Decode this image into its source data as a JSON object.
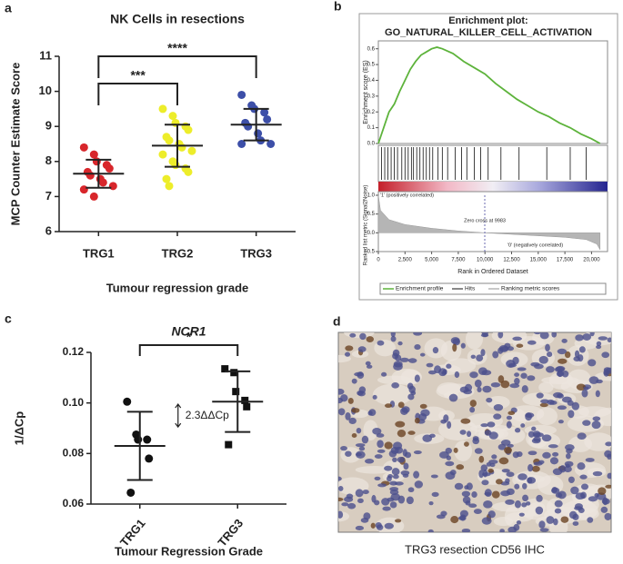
{
  "chart_data": [
    {
      "type": "scatter",
      "panel": "a",
      "title": "NK Cells in resections",
      "ylabel": "MCP Counter Estimate Score",
      "xlabel": "Tumour regression grade",
      "categories": [
        "TRG1",
        "TRG2",
        "TRG3"
      ],
      "groups": [
        {
          "color": "#d8262b",
          "marker": "circle",
          "values": [
            8.4,
            8.2,
            8.0,
            7.9,
            7.8,
            7.7,
            7.6,
            7.5,
            7.4,
            7.3,
            7.2,
            7.0
          ],
          "mean": 7.65,
          "sd": 0.4
        },
        {
          "color": "#eded2a",
          "marker": "circle",
          "values": [
            9.5,
            9.3,
            9.1,
            9.0,
            8.9,
            8.7,
            8.6,
            8.5,
            8.4,
            8.3,
            8.2,
            8.0,
            7.9,
            7.8,
            7.7,
            7.5,
            7.3
          ],
          "mean": 8.45,
          "sd": 0.6
        },
        {
          "color": "#3d4fa8",
          "marker": "circle",
          "values": [
            9.9,
            9.6,
            9.5,
            9.4,
            9.2,
            9.1,
            9.0,
            8.8,
            8.6,
            8.5,
            8.5
          ],
          "mean": 9.05,
          "sd": 0.45
        }
      ],
      "ylim": [
        6,
        11
      ],
      "yticks": [
        6,
        7,
        8,
        9,
        10,
        11
      ],
      "comparisons": [
        {
          "label": "***",
          "groups": [
            0,
            1
          ]
        },
        {
          "label": "****",
          "groups": [
            0,
            2
          ]
        }
      ]
    },
    {
      "type": "line",
      "panel": "b",
      "title": "Enrichment plot:",
      "subtitle": "GO_NATURAL_KILLER_CELL_ACTIVATION",
      "ylabel": "Enrichment score (ES)",
      "x": [
        0,
        500,
        1000,
        1500,
        2000,
        2500,
        3000,
        3500,
        4000,
        4500,
        5000,
        5500,
        6000,
        7000,
        8000,
        9000,
        10000,
        11000,
        12000,
        13000,
        14000,
        15000,
        16000,
        17000,
        18000,
        19000,
        20000,
        20800
      ],
      "series": [
        {
          "name": "Enrichment profile",
          "color": "#5db33b",
          "values": [
            0,
            0.1,
            0.2,
            0.25,
            0.33,
            0.4,
            0.47,
            0.52,
            0.56,
            0.58,
            0.6,
            0.61,
            0.6,
            0.57,
            0.52,
            0.48,
            0.44,
            0.38,
            0.33,
            0.28,
            0.24,
            0.2,
            0.17,
            0.13,
            0.1,
            0.06,
            0.03,
            0
          ]
        }
      ],
      "ylim": [
        0,
        0.65
      ],
      "yticks": [
        {
          "value": 0,
          "label": "0.0"
        },
        0.1,
        0.2,
        0.3,
        0.4,
        0.5,
        0.6
      ],
      "hits": {
        "name": "Hits",
        "x": [
          300,
          600,
          900,
          1200,
          1500,
          1800,
          2200,
          2500,
          2800,
          3100,
          3300,
          3600,
          3900,
          4200,
          4500,
          4800,
          5100,
          5600,
          6000,
          6500,
          7200,
          7800,
          8300,
          9000,
          9600,
          10300,
          11500,
          13200,
          15800,
          18000,
          19500
        ]
      },
      "ranking": {
        "name": "Ranking metric scores",
        "ylabel": "Ranked list metric (Signal2Noise)",
        "x": [
          0,
          200,
          1000,
          2500,
          5000,
          7500,
          10000,
          12500,
          15000,
          17500,
          19500,
          20500,
          20800
        ],
        "values": [
          1.0,
          0.6,
          0.35,
          0.22,
          0.12,
          0.05,
          0,
          -0.04,
          -0.08,
          -0.12,
          -0.18,
          -0.3,
          -0.45
        ],
        "ylim": [
          -0.5,
          1.0
        ],
        "yticks": [
          {
            "value": 1,
            "label": "1.0"
          },
          0.5,
          {
            "value": 0,
            "label": "0.0"
          },
          -0.5
        ],
        "pos_label": "'1' (positively correlated)",
        "neg_label": "'0' (negatively correlated)",
        "zero_cross": {
          "label": "Zero cross at 9983",
          "value": 9983
        }
      },
      "xlim": [
        0,
        21500
      ],
      "xticks": [
        0,
        {
          "value": 2500,
          "label": "2,500"
        },
        {
          "value": 5000,
          "label": "5,000"
        },
        {
          "value": 7500,
          "label": "7,500"
        },
        {
          "value": 10000,
          "label": "10,000"
        },
        {
          "value": 12500,
          "label": "12,500"
        },
        {
          "value": 15000,
          "label": "15,000"
        },
        {
          "value": 17500,
          "label": "17,500"
        },
        {
          "value": 20000,
          "label": "20,000"
        }
      ],
      "xlabel": "Rank in Ordered Dataset"
    },
    {
      "type": "scatter",
      "panel": "c",
      "title": "NCR1",
      "ylabel": "1/ΔCp",
      "xlabel": "Tumour Regression Grade",
      "categories": [
        "TRG1",
        "TRG3"
      ],
      "groups": [
        {
          "color": "#111111",
          "marker": "circle",
          "values": [
            0.1005,
            0.0875,
            0.0855,
            0.0855,
            0.078,
            0.0645
          ],
          "mean": 0.083,
          "sd": 0.0135
        },
        {
          "color": "#111111",
          "marker": "square",
          "values": [
            0.1135,
            0.112,
            0.1045,
            0.101,
            0.0985,
            0.0835
          ],
          "mean": 0.1005,
          "sd": 0.012
        }
      ],
      "ylim": [
        0.06,
        0.12
      ],
      "yticks": [
        0.06,
        0.08,
        {
          "value": 0.1,
          "label": "0.10"
        },
        0.12
      ],
      "comparisons": [
        {
          "label": "*",
          "groups": [
            0,
            1
          ]
        }
      ],
      "note": "2.3ΔΔCp"
    }
  ],
  "panel_d": {
    "panel": "d",
    "caption": "TRG3 resection CD56 IHC"
  }
}
